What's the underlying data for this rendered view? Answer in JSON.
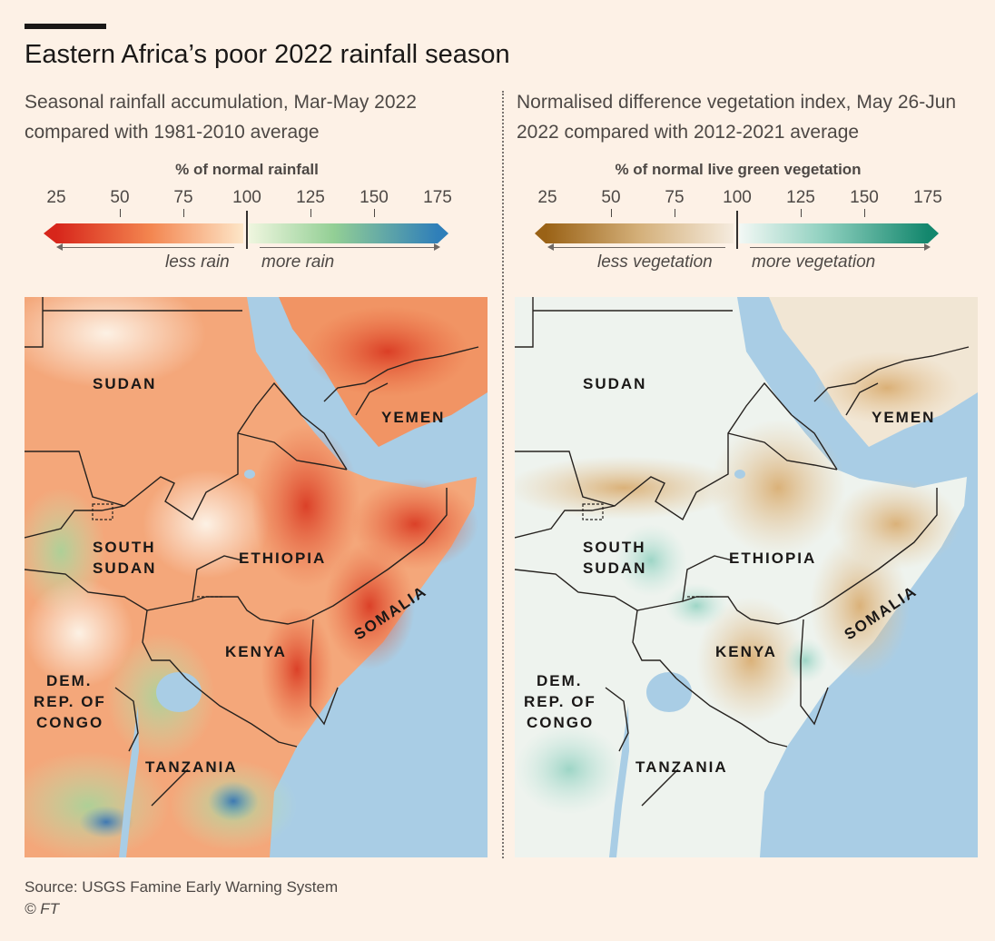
{
  "title": "Eastern Africa’s poor 2022 rainfall season",
  "panels": [
    {
      "subtitle": "Seasonal rainfall accumulation, Mar-May 2022 compared with 1981-2010 average",
      "legend_title": "% of normal rainfall",
      "ticks": [
        "25",
        "50",
        "75",
        "100",
        "125",
        "150",
        "175"
      ],
      "less_label": "less rain",
      "more_label": "more rain",
      "colors": {
        "low": "#d7261b",
        "mid_low": "#fde6c8",
        "mid_high": "#e9f3d5",
        "high": "#2f7fb9"
      }
    },
    {
      "subtitle": "Normalised difference vegetation index, May 26-Jun 2022 compared with 2012-2021 average",
      "legend_title": "% of normal live green vegetation",
      "ticks": [
        "25",
        "50",
        "75",
        "100",
        "125",
        "150",
        "175"
      ],
      "less_label": "less vegetation",
      "more_label": "more vegetation",
      "colors": {
        "low": "#9a6216",
        "mid_low": "#f5e9da",
        "mid_high": "#eef6f3",
        "high": "#13876d"
      }
    }
  ],
  "countries": {
    "sudan": "SUDAN",
    "yemen": "YEMEN",
    "south_sudan_1": "SOUTH",
    "south_sudan_2": "SUDAN",
    "ethiopia": "ETHIOPIA",
    "somalia": "SOMALIA",
    "kenya": "KENYA",
    "drc_1": "DEM.",
    "drc_2": "REP. OF",
    "drc_3": "CONGO",
    "tanzania": "TANZANIA"
  },
  "source": "Source: USGS Famine Early Warning System",
  "credit": "© FT"
}
